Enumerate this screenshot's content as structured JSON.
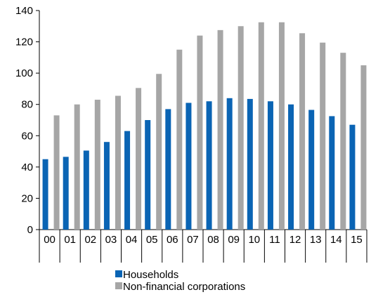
{
  "chart_data": {
    "type": "bar",
    "categories": [
      "00",
      "01",
      "02",
      "03",
      "04",
      "05",
      "06",
      "07",
      "08",
      "09",
      "10",
      "11",
      "12",
      "13",
      "14",
      "15"
    ],
    "series": [
      {
        "name": "Households",
        "color": "#0a64b4",
        "values": [
          45,
          46.5,
          50.5,
          56,
          63,
          70,
          77,
          81,
          82,
          84,
          83.5,
          82,
          80,
          76.5,
          72.5,
          67
        ]
      },
      {
        "name": "Non-financial corporations",
        "color": "#a6a6a6",
        "values": [
          73,
          80,
          83,
          85.5,
          90.5,
          99.5,
          115,
          124,
          127.5,
          130,
          132.5,
          132.5,
          125.5,
          119.5,
          113,
          105
        ]
      }
    ],
    "title": "",
    "xlabel": "",
    "ylabel": "",
    "ylim": [
      0,
      140
    ],
    "yticks": [
      0,
      20,
      40,
      60,
      80,
      100,
      120,
      140
    ],
    "grid": false,
    "legend": "bottom"
  }
}
